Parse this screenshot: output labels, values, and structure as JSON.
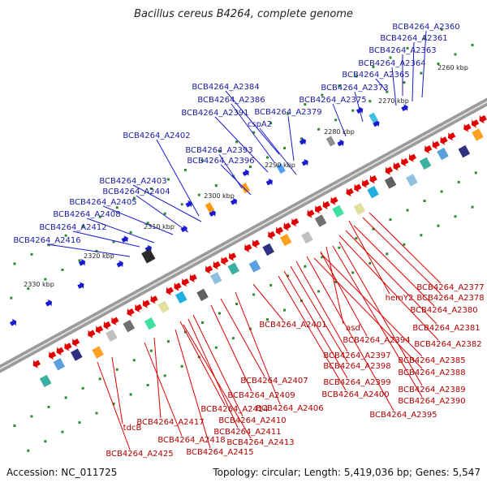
{
  "title": "Bacillus cereus B4264, complete genome",
  "footer": {
    "accession": "Accession: NC_011725",
    "summary": "Topology: circular; Length: 5,419,036 bp; Genes: 5,547"
  },
  "colors": {
    "forward": "#1a1ad0",
    "reverse": "#e00000",
    "backbone": "#808080",
    "tick": "#2e8b2e"
  },
  "scale_labels": [
    "2260 kbp",
    "2270 kbp",
    "2280 kbp",
    "2290 kbp",
    "2300 kbp",
    "2310 kbp",
    "2320 kbp",
    "2330 kbp"
  ],
  "top_labels": [
    "BCB4264_A2360",
    "BCB4264_A2361",
    "BCB4264_A2363",
    "BCB4264_A2364",
    "BCB4264_A2365",
    "BCB4264_A2373",
    "BCB4264_A2375",
    "BCB4264_A2379",
    "cspA2",
    "BCB4264_A2384",
    "BCB4264_A2386",
    "BCB4264_A2391",
    "BCB4264_A2393",
    "BCB4264_A2396",
    "BCB4264_A2402",
    "BCB4264_A2403",
    "BCB4264_A2404",
    "BCB4264_A2405",
    "BCB4264_A2408",
    "BCB4264_A2412",
    "BCB4264_A2416"
  ],
  "bottom_labels": [
    "BCB4264_A2377",
    "BCB4264_A2378",
    "hemY2",
    "BCB4264_A2380",
    "BCB4264_A2381",
    "BCB4264_A2382",
    "asd",
    "BCB4264_A2394",
    "BCB4264_A2401",
    "BCB4264_A2385",
    "BCB4264_A2388",
    "BCB4264_A2397",
    "BCB4264_A2398",
    "BCB4264_A2399",
    "BCB4264_A2400",
    "BCB4264_A2389",
    "BCB4264_A2390",
    "BCB4264_A2395",
    "BCB4264_A2407",
    "BCB4264_A2409",
    "BCB4264_A2406",
    "BCB4264_A2414",
    "BCB4264_A2410",
    "BCB4264_A2411",
    "BCB4264_A2413",
    "BCB4264_A2415",
    "BCB4264_A2417",
    "BCB4264_A2418",
    "tdcB",
    "BCB4264_A2425"
  ]
}
